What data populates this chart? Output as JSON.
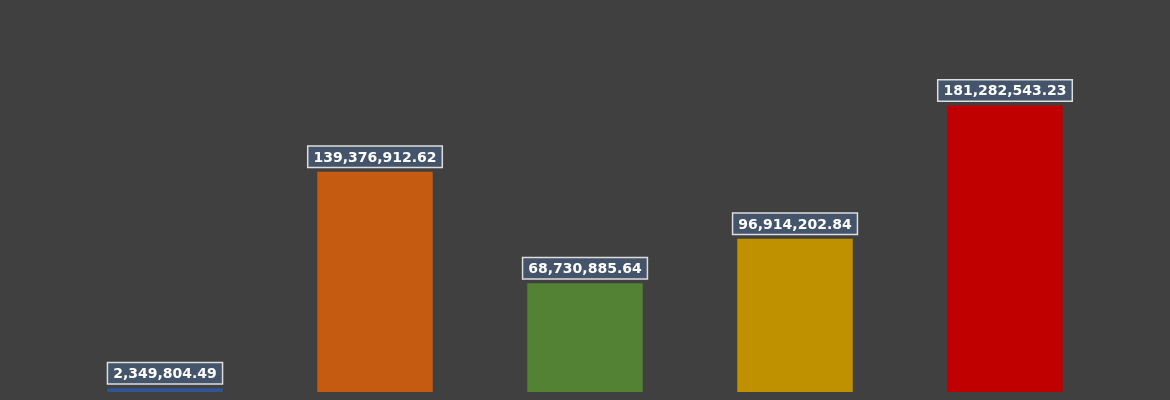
{
  "chart_data": {
    "type": "bar",
    "categories": [
      null,
      null,
      null,
      null,
      null
    ],
    "values": [
      2349804.49,
      139376912.62,
      68730885.64,
      96914202.84,
      181282543.23
    ],
    "colors": [
      "#2f5597",
      "#c55a11",
      "#548235",
      "#bf9000",
      "#c00000"
    ],
    "value_labels": [
      "2,349,804.49",
      "139,376,912.62",
      "68,730,885.64",
      "96,914,202.84",
      "181,282,543.23"
    ]
  }
}
